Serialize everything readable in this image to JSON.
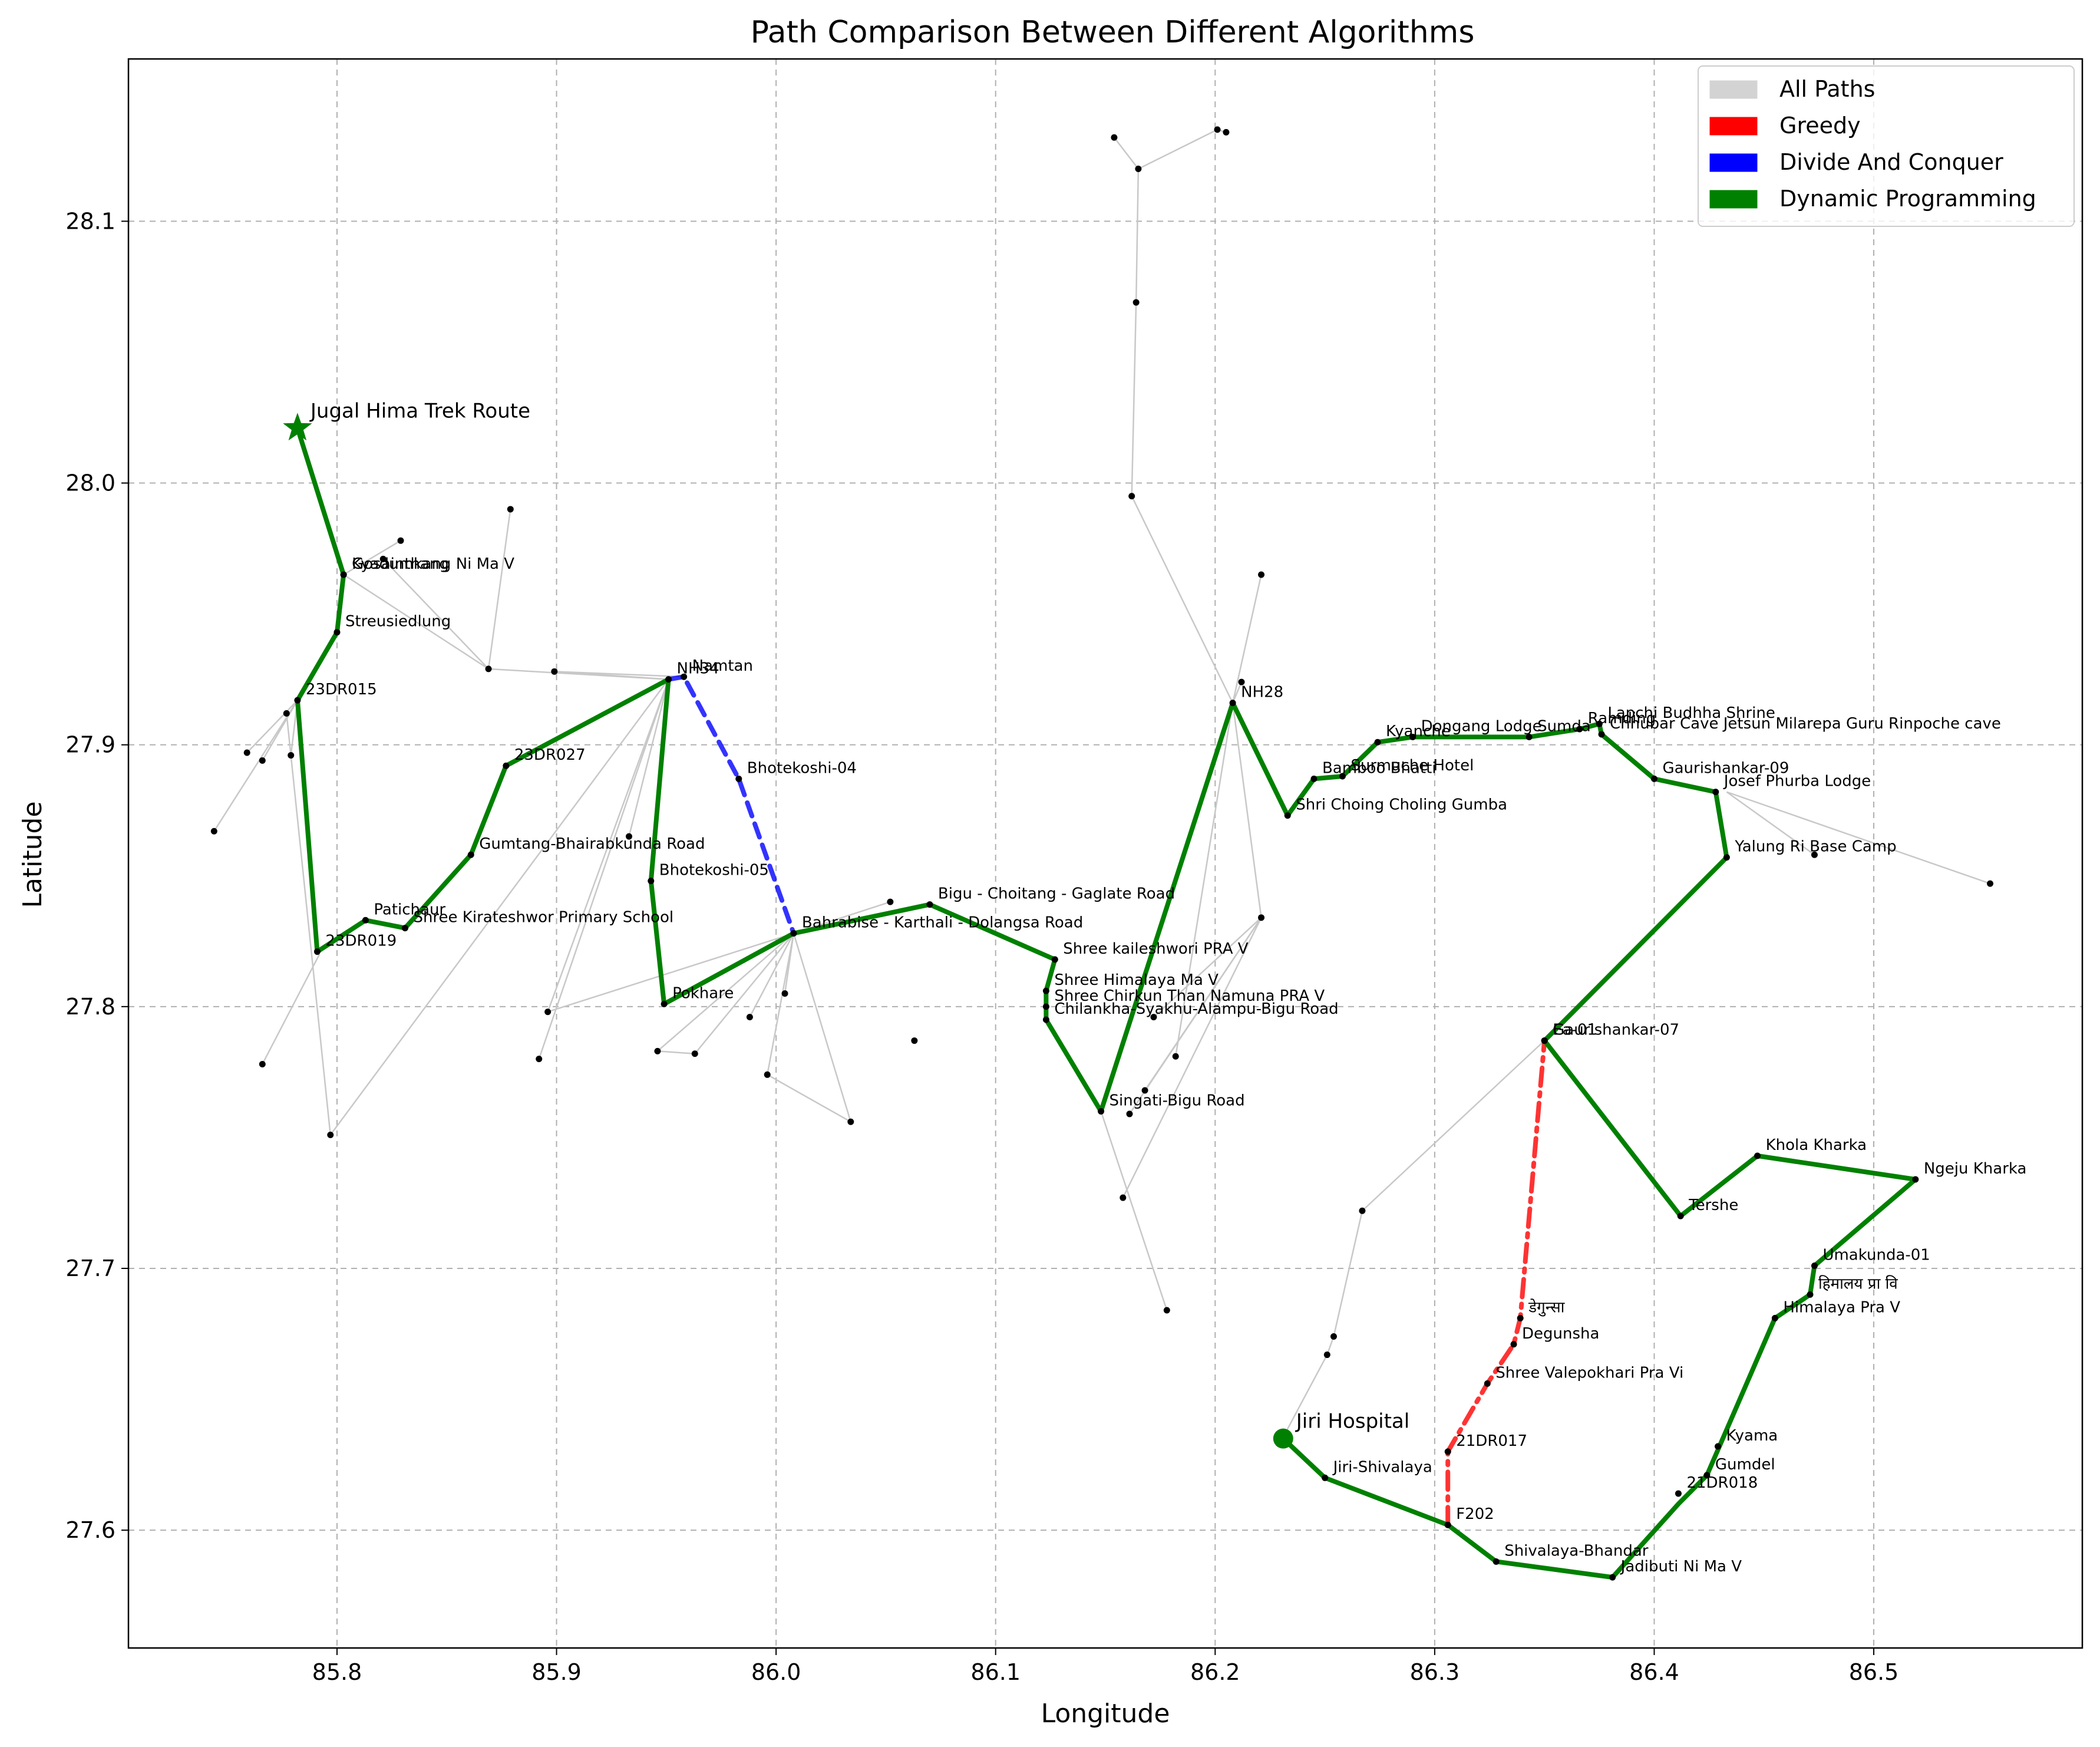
{
  "chart_data": {
    "type": "line",
    "title": "Path Comparison Between Different Algorithms",
    "xlabel": "Longitude",
    "ylabel": "Latitude",
    "xlim": [
      85.705,
      86.595
    ],
    "ylim": [
      27.555,
      28.162
    ],
    "xticks": [
      85.8,
      85.9,
      86.0,
      86.1,
      86.2,
      86.3,
      86.4,
      86.5
    ],
    "xtick_labels": [
      "85.8",
      "85.9",
      "86.0",
      "86.1",
      "86.2",
      "86.3",
      "86.4",
      "86.5"
    ],
    "yticks": [
      27.6,
      27.7,
      27.8,
      27.9,
      28.0,
      28.1
    ],
    "ytick_labels": [
      "27.6",
      "27.7",
      "27.8",
      "27.9",
      "28.0",
      "28.1"
    ],
    "grid": true,
    "legend_position": "top-right",
    "legend": [
      {
        "label": "All Paths",
        "color": "#d3d3d3"
      },
      {
        "label": "Greedy",
        "color": "#ff0000"
      },
      {
        "label": "Divide And Conquer",
        "color": "#0000ff"
      },
      {
        "label": "Dynamic Programming",
        "color": "#008000"
      }
    ],
    "start": {
      "name": "Jiri Hospital",
      "x": 86.231,
      "y": 27.635
    },
    "end": {
      "name": "Jugal Hima Trek Route",
      "x": 85.782,
      "y": 28.021
    },
    "background_edges": [
      [
        [
          85.782,
          28.021
        ],
        [
          85.803,
          27.965
        ]
      ],
      [
        [
          85.803,
          27.965
        ],
        [
          85.829,
          27.978
        ]
      ],
      [
        [
          85.803,
          27.965
        ],
        [
          85.869,
          27.929
        ]
      ],
      [
        [
          85.869,
          27.929
        ],
        [
          85.879,
          27.99
        ]
      ],
      [
        [
          85.869,
          27.929
        ],
        [
          85.951,
          27.925
        ]
      ],
      [
        [
          85.899,
          27.928
        ],
        [
          85.958,
          27.926
        ]
      ],
      [
        [
          85.821,
          27.971
        ],
        [
          85.869,
          27.929
        ]
      ],
      [
        [
          85.782,
          27.917
        ],
        [
          85.744,
          27.867
        ]
      ],
      [
        [
          85.782,
          27.917
        ],
        [
          85.759,
          27.897
        ]
      ],
      [
        [
          85.782,
          27.917
        ],
        [
          85.766,
          27.894
        ]
      ],
      [
        [
          85.782,
          27.917
        ],
        [
          85.779,
          27.896
        ]
      ],
      [
        [
          85.777,
          27.912
        ],
        [
          85.797,
          27.751
        ]
      ],
      [
        [
          85.792,
          27.82
        ],
        [
          85.766,
          27.778
        ]
      ],
      [
        [
          85.797,
          27.751
        ],
        [
          85.951,
          27.925
        ]
      ],
      [
        [
          85.951,
          27.925
        ],
        [
          85.896,
          27.798
        ]
      ],
      [
        [
          85.951,
          27.925
        ],
        [
          85.892,
          27.78
        ]
      ],
      [
        [
          85.951,
          27.925
        ],
        [
          85.933,
          27.865
        ]
      ],
      [
        [
          85.951,
          27.925
        ],
        [
          85.899,
          27.928
        ]
      ],
      [
        [
          85.896,
          27.798
        ],
        [
          86.008,
          27.828
        ]
      ],
      [
        [
          86.008,
          27.828
        ],
        [
          85.946,
          27.783
        ]
      ],
      [
        [
          85.946,
          27.783
        ],
        [
          85.963,
          27.782
        ]
      ],
      [
        [
          86.008,
          27.828
        ],
        [
          85.963,
          27.782
        ]
      ],
      [
        [
          86.008,
          27.828
        ],
        [
          85.988,
          27.796
        ]
      ],
      [
        [
          86.008,
          27.828
        ],
        [
          85.996,
          27.774
        ]
      ],
      [
        [
          86.008,
          27.828
        ],
        [
          86.004,
          27.805
        ]
      ],
      [
        [
          86.008,
          27.828
        ],
        [
          86.034,
          27.756
        ]
      ],
      [
        [
          85.996,
          27.774
        ],
        [
          86.034,
          27.756
        ]
      ],
      [
        [
          86.008,
          27.828
        ],
        [
          86.052,
          27.84
        ]
      ],
      [
        [
          86.162,
          27.995
        ],
        [
          86.164,
          28.069
        ]
      ],
      [
        [
          86.164,
          28.069
        ],
        [
          86.165,
          28.12
        ]
      ],
      [
        [
          86.165,
          28.12
        ],
        [
          86.154,
          28.132
        ]
      ],
      [
        [
          86.165,
          28.12
        ],
        [
          86.201,
          28.135
        ]
      ],
      [
        [
          86.201,
          28.135
        ],
        [
          86.205,
          28.134
        ]
      ],
      [
        [
          86.162,
          27.995
        ],
        [
          86.208,
          27.916
        ]
      ],
      [
        [
          86.208,
          27.916
        ],
        [
          86.221,
          27.965
        ]
      ],
      [
        [
          86.208,
          27.916
        ],
        [
          86.212,
          27.924
        ]
      ],
      [
        [
          86.208,
          27.916
        ],
        [
          86.221,
          27.834
        ]
      ],
      [
        [
          86.208,
          27.916
        ],
        [
          86.182,
          27.781
        ]
      ],
      [
        [
          86.221,
          27.834
        ],
        [
          86.172,
          27.796
        ]
      ],
      [
        [
          86.221,
          27.834
        ],
        [
          86.161,
          27.759
        ]
      ],
      [
        [
          86.221,
          27.834
        ],
        [
          86.168,
          27.768
        ]
      ],
      [
        [
          86.221,
          27.834
        ],
        [
          86.158,
          27.727
        ]
      ],
      [
        [
          86.148,
          27.76
        ],
        [
          86.178,
          27.684
        ]
      ],
      [
        [
          86.23,
          27.634
        ],
        [
          86.251,
          27.667
        ]
      ],
      [
        [
          86.251,
          27.667
        ],
        [
          86.254,
          27.674
        ]
      ],
      [
        [
          86.254,
          27.674
        ],
        [
          86.267,
          27.722
        ]
      ],
      [
        [
          86.267,
          27.722
        ],
        [
          86.35,
          27.787
        ]
      ],
      [
        [
          86.433,
          27.882
        ],
        [
          86.473,
          27.858
        ]
      ],
      [
        [
          86.433,
          27.882
        ],
        [
          86.553,
          27.847
        ]
      ]
    ],
    "series": [
      {
        "name": "Dynamic Programming",
        "x": [
          86.231,
          86.25,
          86.306,
          86.328,
          86.381,
          86.411,
          86.424,
          86.455,
          86.471,
          86.473,
          86.519,
          86.447,
          86.412,
          86.35,
          86.433,
          86.428,
          86.4,
          86.376,
          86.375,
          86.366,
          86.343,
          86.29,
          86.274,
          86.258,
          86.245,
          86.233,
          86.208,
          86.148,
          86.123,
          86.123,
          86.127,
          86.07,
          86.008,
          85.949,
          85.943,
          85.951,
          85.877,
          85.861,
          85.831,
          85.813,
          85.791,
          85.782,
          85.8,
          85.803,
          85.782
        ],
        "y": [
          27.635,
          27.62,
          27.602,
          27.588,
          27.582,
          27.61,
          27.621,
          27.681,
          27.69,
          27.701,
          27.734,
          27.743,
          27.72,
          27.787,
          27.857,
          27.882,
          27.887,
          27.904,
          27.908,
          27.906,
          27.903,
          27.903,
          27.901,
          27.888,
          27.887,
          27.873,
          27.916,
          27.76,
          27.795,
          27.806,
          27.818,
          27.839,
          27.828,
          27.801,
          27.848,
          27.925,
          27.892,
          27.858,
          27.83,
          27.833,
          27.821,
          27.917,
          27.943,
          27.965,
          28.021
        ]
      },
      {
        "name": "Greedy",
        "x": [
          86.306,
          86.306,
          86.324,
          86.336,
          86.339,
          86.35
        ],
        "y": [
          27.602,
          27.63,
          27.656,
          27.671,
          27.681,
          27.787
        ]
      },
      {
        "name": "Divide And Conquer",
        "x": [
          85.951,
          85.958,
          85.983,
          86.008
        ],
        "y": [
          27.925,
          27.926,
          27.887,
          27.828
        ]
      }
    ],
    "nodes": [
      {
        "x": 85.803,
        "y": 27.965,
        "label": "Gosainthang"
      },
      {
        "x": 85.803,
        "y": 27.965,
        "label": "Kyadumkang Ni Ma V"
      },
      {
        "x": 85.8,
        "y": 27.943,
        "label": "Streusiedlung"
      },
      {
        "x": 85.782,
        "y": 27.917,
        "label": "23DR015"
      },
      {
        "x": 85.791,
        "y": 27.821,
        "label": "23DR019"
      },
      {
        "x": 85.813,
        "y": 27.833,
        "label": "Patichaur"
      },
      {
        "x": 85.831,
        "y": 27.83,
        "label": "Shree Kirateshwor Primary School"
      },
      {
        "x": 85.861,
        "y": 27.858,
        "label": "Gumtang-Bhairabkunda Road"
      },
      {
        "x": 85.877,
        "y": 27.892,
        "label": "23DR027"
      },
      {
        "x": 85.951,
        "y": 27.925,
        "label": "NH34"
      },
      {
        "x": 85.958,
        "y": 27.926,
        "label": "Namtan"
      },
      {
        "x": 85.983,
        "y": 27.887,
        "label": "Bhotekoshi-04"
      },
      {
        "x": 85.943,
        "y": 27.848,
        "label": "Bhotekoshi-05"
      },
      {
        "x": 85.949,
        "y": 27.801,
        "label": "Pokhare"
      },
      {
        "x": 86.008,
        "y": 27.828,
        "label": "Bahrabise - Karthali - Dolangsa Road"
      },
      {
        "x": 86.07,
        "y": 27.839,
        "label": "Bigu - Choitang - Gaglate Road"
      },
      {
        "x": 86.127,
        "y": 27.818,
        "label": "Shree kaileshwori PRA V"
      },
      {
        "x": 86.123,
        "y": 27.806,
        "label": "Shree Himalaya Ma V"
      },
      {
        "x": 86.123,
        "y": 27.8,
        "label": "Shree Chirkun Than Namuna PRA V"
      },
      {
        "x": 86.123,
        "y": 27.795,
        "label": "Chilankha-Syakhu-Alampu-Bigu Road"
      },
      {
        "x": 86.148,
        "y": 27.76,
        "label": "Singati-Bigu Road"
      },
      {
        "x": 86.208,
        "y": 27.916,
        "label": "NH28"
      },
      {
        "x": 86.233,
        "y": 27.873,
        "label": "Shri Choing Choling Gumba"
      },
      {
        "x": 86.245,
        "y": 27.887,
        "label": "Bamboo Bhatti"
      },
      {
        "x": 86.258,
        "y": 27.888,
        "label": "Surmuche Hotel"
      },
      {
        "x": 86.274,
        "y": 27.901,
        "label": "Kyanche"
      },
      {
        "x": 86.29,
        "y": 27.903,
        "label": "Dongang Lodge"
      },
      {
        "x": 86.343,
        "y": 27.903,
        "label": "Sumda"
      },
      {
        "x": 86.366,
        "y": 27.906,
        "label": "Ramding"
      },
      {
        "x": 86.375,
        "y": 27.908,
        "label": "Lapchi Budhha Shrine"
      },
      {
        "x": 86.376,
        "y": 27.904,
        "label": "Chhubar Cave Jetsun Milarepa Guru Rinpoche cave"
      },
      {
        "x": 86.4,
        "y": 27.887,
        "label": "Gaurishankar-09"
      },
      {
        "x": 86.428,
        "y": 27.882,
        "label": "Josef Phurba Lodge"
      },
      {
        "x": 86.433,
        "y": 27.857,
        "label": "Yalung Ri Base Camp"
      },
      {
        "x": 86.35,
        "y": 27.787,
        "label": "Gaurishankar-07"
      },
      {
        "x": 86.35,
        "y": 27.787,
        "label": "Ea-01"
      },
      {
        "x": 86.412,
        "y": 27.72,
        "label": "Tershe"
      },
      {
        "x": 86.447,
        "y": 27.743,
        "label": "Khola Kharka"
      },
      {
        "x": 86.519,
        "y": 27.734,
        "label": "Ngeju Kharka"
      },
      {
        "x": 86.473,
        "y": 27.701,
        "label": "Umakunda-01"
      },
      {
        "x": 86.471,
        "y": 27.69,
        "label": "हिमालय प्रा वि"
      },
      {
        "x": 86.455,
        "y": 27.681,
        "label": "Himalaya Pra V"
      },
      {
        "x": 86.429,
        "y": 27.632,
        "label": "Kyama"
      },
      {
        "x": 86.424,
        "y": 27.621,
        "label": "Gumdel"
      },
      {
        "x": 86.411,
        "y": 27.614,
        "label": "21DR018"
      },
      {
        "x": 86.381,
        "y": 27.582,
        "label": "Jadibuti Ni Ma V"
      },
      {
        "x": 86.328,
        "y": 27.588,
        "label": "Shivalaya-Bhandar"
      },
      {
        "x": 86.306,
        "y": 27.602,
        "label": "F202"
      },
      {
        "x": 86.25,
        "y": 27.62,
        "label": "Jiri-Shivalaya"
      },
      {
        "x": 86.306,
        "y": 27.63,
        "label": "21DR017"
      },
      {
        "x": 86.324,
        "y": 27.656,
        "label": "Shree Valepokhari Pra Vi"
      },
      {
        "x": 86.336,
        "y": 27.671,
        "label": "Degunsha"
      },
      {
        "x": 86.339,
        "y": 27.681,
        "label": "डेगुन्सा"
      }
    ],
    "extra_points": [
      [
        85.829,
        27.978
      ],
      [
        85.821,
        27.971
      ],
      [
        85.879,
        27.99
      ],
      [
        85.869,
        27.929
      ],
      [
        85.899,
        27.928
      ],
      [
        85.744,
        27.867
      ],
      [
        85.759,
        27.897
      ],
      [
        85.766,
        27.894
      ],
      [
        85.779,
        27.896
      ],
      [
        85.777,
        27.912
      ],
      [
        85.766,
        27.778
      ],
      [
        85.797,
        27.751
      ],
      [
        85.896,
        27.798
      ],
      [
        85.892,
        27.78
      ],
      [
        85.933,
        27.865
      ],
      [
        85.946,
        27.783
      ],
      [
        85.963,
        27.782
      ],
      [
        85.988,
        27.796
      ],
      [
        85.996,
        27.774
      ],
      [
        86.004,
        27.805
      ],
      [
        86.034,
        27.756
      ],
      [
        86.052,
        27.84
      ],
      [
        86.063,
        27.787
      ],
      [
        86.154,
        28.132
      ],
      [
        86.165,
        28.12
      ],
      [
        86.201,
        28.135
      ],
      [
        86.205,
        28.134
      ],
      [
        86.164,
        28.069
      ],
      [
        86.162,
        27.995
      ],
      [
        86.221,
        27.965
      ],
      [
        86.212,
        27.924
      ],
      [
        86.221,
        27.834
      ],
      [
        86.172,
        27.796
      ],
      [
        86.182,
        27.781
      ],
      [
        86.168,
        27.768
      ],
      [
        86.161,
        27.759
      ],
      [
        86.158,
        27.727
      ],
      [
        86.178,
        27.684
      ],
      [
        86.267,
        27.722
      ],
      [
        86.254,
        27.674
      ],
      [
        86.251,
        27.667
      ],
      [
        86.473,
        27.858
      ],
      [
        86.553,
        27.847
      ]
    ]
  }
}
